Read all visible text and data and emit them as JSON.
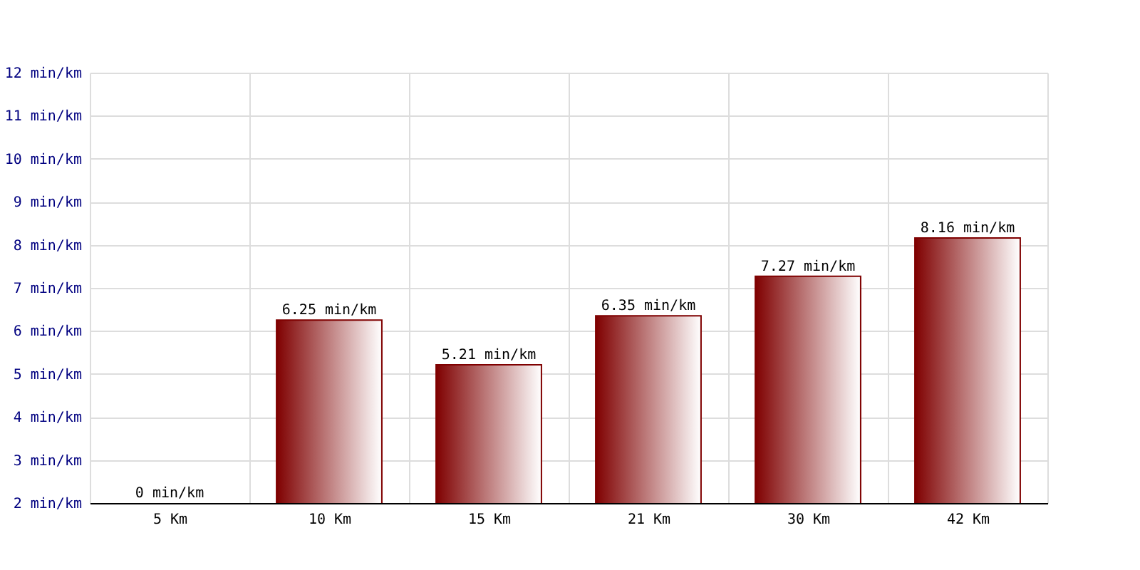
{
  "chart_data": {
    "type": "bar",
    "categories": [
      "5 Km",
      "10 Km",
      "15 Km",
      "21 Km",
      "30 Km",
      "42 Km"
    ],
    "values": [
      null,
      6.25,
      5.21,
      6.35,
      7.27,
      8.16
    ],
    "value_labels": [
      "0 min/km",
      "6.25 min/km",
      "5.21 min/km",
      "6.35 min/km",
      "7.27 min/km",
      "8.16 min/km"
    ],
    "color": "#7f0000",
    "ylim": [
      2,
      12
    ],
    "yticks": [
      {
        "value": 2,
        "label": "2 min/km"
      },
      {
        "value": 3,
        "label": "3 min/km"
      },
      {
        "value": 4,
        "label": "4 min/km"
      },
      {
        "value": 5,
        "label": "5 min/km"
      },
      {
        "value": 6,
        "label": "6 min/km"
      },
      {
        "value": 7,
        "label": "7 min/km"
      },
      {
        "value": 8,
        "label": "8 min/km"
      },
      {
        "value": 9,
        "label": "9 min/km"
      },
      {
        "value": 10,
        "label": "10 min/km"
      },
      {
        "value": 11,
        "label": "11 min/km"
      },
      {
        "value": 12,
        "label": "12 min/km"
      }
    ],
    "grid": true
  }
}
